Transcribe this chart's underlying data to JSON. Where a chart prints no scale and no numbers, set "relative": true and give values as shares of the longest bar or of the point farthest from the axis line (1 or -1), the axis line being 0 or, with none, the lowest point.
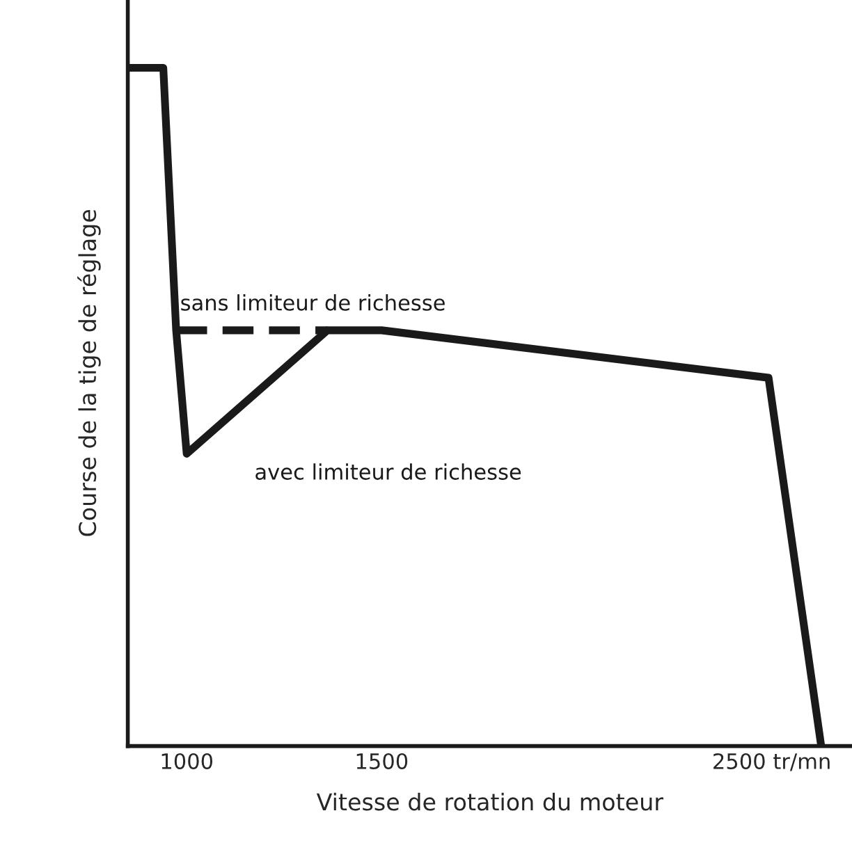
{
  "chart_data": {
    "type": "line",
    "relative": true,
    "xlabel": "Vitesse de rotation du moteur",
    "ylabel": "Course de la tige de réglage",
    "xlim": [
      849,
      2706
    ],
    "xticks": [
      1000,
      1500,
      {
        "value": 2500,
        "label": "2500 tr/mn"
      }
    ],
    "grid": false,
    "legend": false,
    "series": [
      {
        "name": "avec limiteur de richesse",
        "color": "#1a1a1a",
        "line_style": "solid",
        "x": [
          849,
          940,
          973,
          1000,
          1361,
          1500,
          2492,
          2627
        ],
        "values": [
          1,
          1,
          0.613,
          0.431,
          0.613,
          0.613,
          0.543,
          0
        ]
      },
      {
        "name": "sans limiteur de richesse",
        "color": "#1a1a1a",
        "line_style": "dashed",
        "x": [
          973,
          1361
        ],
        "values": [
          0.613,
          0.613
        ]
      }
    ]
  }
}
